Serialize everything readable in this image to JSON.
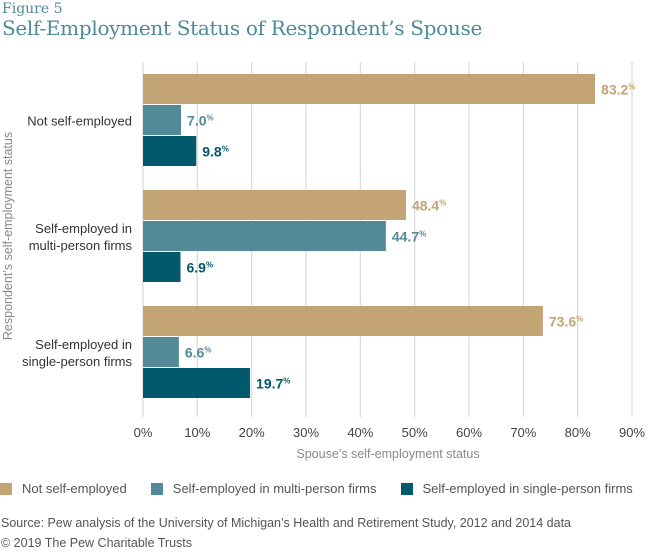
{
  "figure_label": "Figure 5",
  "title": "Self-Employment Status of Respondent’s Spouse",
  "source": "Source: Pew analysis of the University of Michigan’s Health and Retirement Study, 2012 and 2014 data",
  "copyright": "© 2019 The Pew Charitable Trusts",
  "colors": {
    "not_self_employed": "#C4A375",
    "multi_person": "#548A98",
    "single_person": "#02596B",
    "title": "#4E8A9A",
    "gridline": "#D9D9D9"
  },
  "chart_data": {
    "type": "bar",
    "orientation": "horizontal",
    "title": "Self-Employment Status of Respondent’s Spouse",
    "xlabel": "Spouse’s self-employment status",
    "ylabel": "Respondent’s self-employment status",
    "categories": [
      [
        "Not self-employed"
      ],
      [
        "Self-employed in",
        "multi-person firms"
      ],
      [
        "Self-employed in",
        "single-person firms"
      ]
    ],
    "series": [
      {
        "name": "Not self-employed",
        "color": "#C4A375",
        "values": [
          83.2,
          48.4,
          73.6
        ]
      },
      {
        "name": "Self-employed in multi-person firms",
        "color": "#548A98",
        "values": [
          7.0,
          44.7,
          6.6
        ]
      },
      {
        "name": "Self-employed in single-person firms",
        "color": "#02596B",
        "values": [
          9.8,
          6.9,
          19.7
        ]
      }
    ],
    "xlim": [
      0,
      90
    ],
    "xticks": [
      0,
      10,
      20,
      30,
      40,
      50,
      60,
      70,
      80,
      90
    ],
    "xtick_labels": [
      "0%",
      "10%",
      "20%",
      "30%",
      "40%",
      "50%",
      "60%",
      "70%",
      "80%",
      "90%"
    ],
    "value_suffix": "%",
    "grid": true,
    "legend_position": "bottom"
  }
}
